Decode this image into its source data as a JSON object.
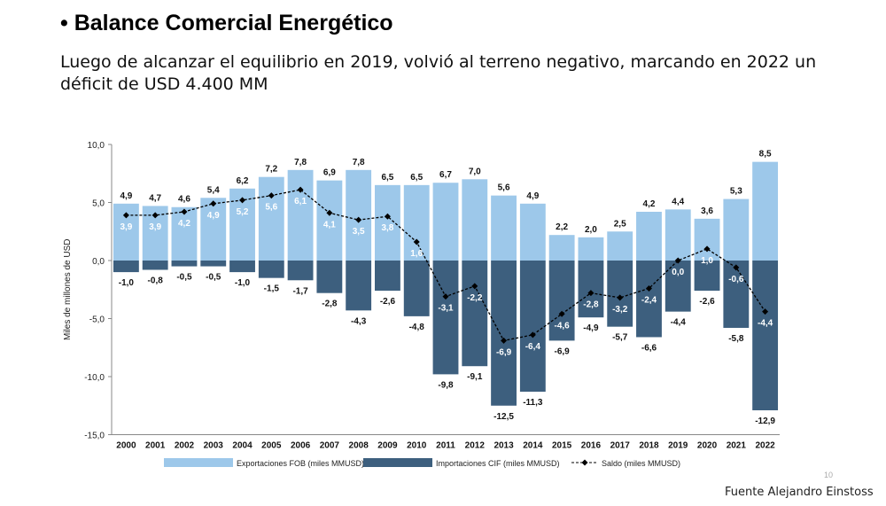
{
  "header": {
    "title": "• Balance Comercial Energético",
    "subtitle": "Luego de alcanzar el equilibrio en 2019, volvió al terreno negativo, marcando en 2022 un déficit de USD 4.400 MM"
  },
  "footer": {
    "source": "Fuente Alejandro Einstoss",
    "slide_number": "10"
  },
  "chart_data": {
    "type": "bar",
    "title": "",
    "xlabel": "",
    "ylabel": "Miles de millones de USD",
    "ylim": [
      -15,
      10
    ],
    "yticks": [
      10,
      5,
      0,
      -5,
      -10,
      -15
    ],
    "ytick_labels": [
      "10,0",
      "5,0",
      "0,0",
      "-5,0",
      "-10,0",
      "-15,0"
    ],
    "legend_position": "bottom",
    "categories": [
      "2000",
      "2001",
      "2002",
      "2003",
      "2004",
      "2005",
      "2006",
      "2007",
      "2008",
      "2009",
      "2010",
      "2011",
      "2012",
      "2013",
      "2014",
      "2015",
      "2016",
      "2017",
      "2018",
      "2019",
      "2020",
      "2021",
      "2022"
    ],
    "series": [
      {
        "name": "Exportaciones FOB (miles MMUSD)",
        "type": "bar",
        "color": "#9DC8EA",
        "values": [
          4.9,
          4.7,
          4.6,
          5.4,
          6.2,
          7.2,
          7.8,
          6.9,
          7.8,
          6.5,
          6.5,
          6.7,
          7.0,
          5.6,
          4.9,
          2.2,
          2.0,
          2.5,
          4.2,
          4.4,
          3.6,
          5.3,
          8.5
        ]
      },
      {
        "name": "Importaciones CIF (miles MMUSD)",
        "type": "bar",
        "color": "#3D5F7E",
        "values": [
          -1.0,
          -0.8,
          -0.5,
          -0.5,
          -1.0,
          -1.5,
          -1.7,
          -2.8,
          -4.3,
          -2.6,
          -4.8,
          -9.8,
          -9.1,
          -12.5,
          -11.3,
          -6.9,
          -4.9,
          -5.7,
          -6.6,
          -4.4,
          -2.6,
          -5.8,
          -12.9
        ]
      },
      {
        "name": "Saldo (miles MMUSD)",
        "type": "line",
        "color": "#000000",
        "values": [
          3.9,
          3.9,
          4.2,
          4.9,
          5.2,
          5.6,
          6.1,
          4.1,
          3.5,
          3.8,
          1.6,
          -3.1,
          -2.2,
          -6.9,
          -6.4,
          -4.6,
          -2.8,
          -3.2,
          -2.4,
          0.0,
          1.0,
          -0.6,
          -4.4
        ]
      }
    ]
  }
}
